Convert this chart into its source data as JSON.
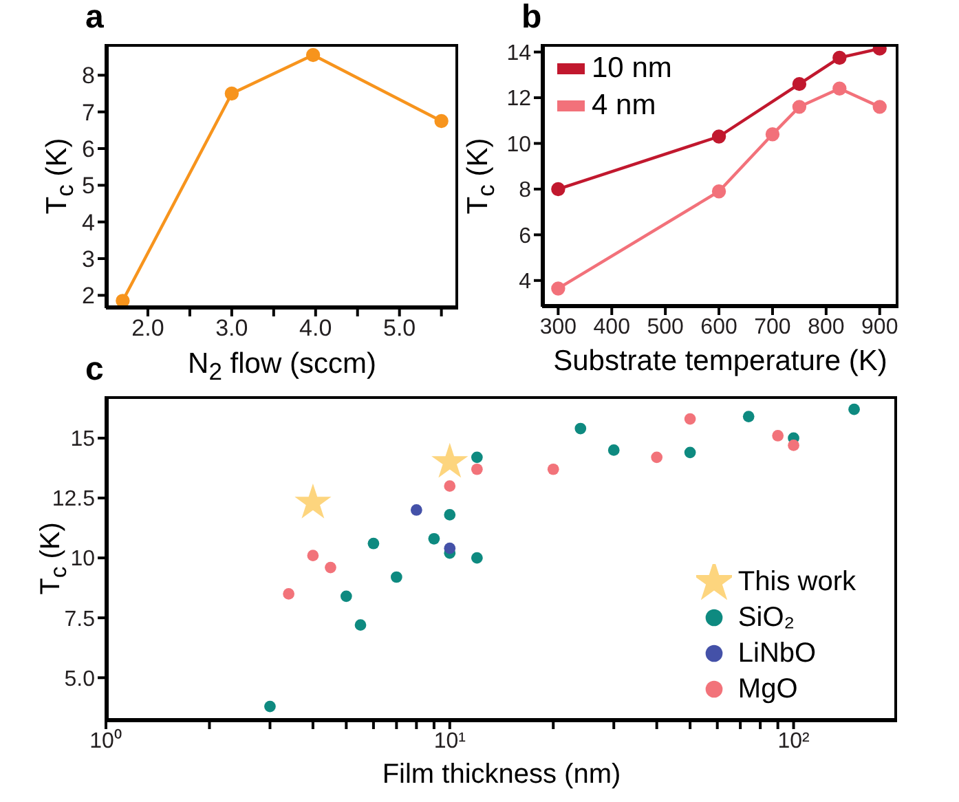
{
  "chart_data": [
    {
      "type": "line",
      "title": "a",
      "xlabel": "N$_{2}$ flow (sccm)",
      "ylabel": "T$_{c}$ (K)",
      "x": [
        1.7,
        3.0,
        3.97,
        5.5
      ],
      "series": [
        {
          "color": "#f7941d",
          "values": [
            1.85,
            7.5,
            8.55,
            6.75
          ]
        }
      ],
      "xlim": [
        1.5,
        5.7
      ],
      "xticks": [
        {
          "value": 2,
          "label": "2.0"
        },
        {
          "value": 2.5,
          "label": null
        },
        {
          "value": 3,
          "label": "3.0"
        },
        {
          "value": 3.5,
          "label": null
        },
        {
          "value": 4,
          "label": "4.0"
        },
        {
          "value": 4.5,
          "label": null
        },
        {
          "value": 5,
          "label": "5.0"
        },
        {
          "value": 5.5,
          "label": null
        }
      ],
      "ylim": [
        1.65,
        8.85
      ],
      "yticks": [
        2,
        3,
        4,
        5,
        6,
        7,
        8
      ],
      "marker": "circle",
      "line_style": "solid",
      "grid": false,
      "legend": false
    },
    {
      "type": "line",
      "title": "b",
      "xlabel": "Substrate temperature (K)",
      "ylabel": "T$_{c}$ (K)",
      "series": [
        {
          "name": "10 nm",
          "color": "#c1182e",
          "x": [
            300,
            600,
            750,
            825,
            900
          ],
          "values": [
            8.0,
            10.3,
            12.6,
            13.75,
            14.15
          ]
        },
        {
          "name": "4 nm",
          "color": "#f2717a",
          "x": [
            300,
            600,
            700,
            750,
            825,
            900
          ],
          "values": [
            3.65,
            7.9,
            10.4,
            11.6,
            12.4,
            11.6
          ]
        }
      ],
      "xlim": [
        270,
        935
      ],
      "xticks": [
        300,
        400,
        500,
        600,
        700,
        800,
        900
      ],
      "ylim": [
        2.85,
        14.35
      ],
      "yticks": [
        4,
        6,
        8,
        10,
        12,
        14
      ],
      "marker": "circle",
      "line_style": "solid",
      "grid": false,
      "legend": "top left"
    },
    {
      "type": "scatter",
      "title": "c",
      "xlabel": "Film thickness (nm)",
      "ylabel": "T$_{c}$ (K)",
      "series": [
        {
          "name": "This work",
          "color": "#fdd57e",
          "marker": "star",
          "x": [
            4,
            10
          ],
          "values": [
            12.3,
            14.0
          ]
        },
        {
          "name": "SiO₂",
          "color": "#0e8a80",
          "x": [
            3,
            5,
            5.5,
            6,
            7,
            9,
            10,
            10,
            12,
            12,
            24,
            30,
            50,
            74,
            100,
            150
          ],
          "values": [
            3.8,
            8.4,
            7.2,
            10.6,
            9.2,
            10.8,
            11.8,
            10.2,
            14.2,
            10.0,
            15.4,
            14.5,
            14.4,
            15.9,
            15.0,
            16.2
          ]
        },
        {
          "name": "LiNbO",
          "color": "#4451a8",
          "x": [
            8,
            10
          ],
          "values": [
            12.0,
            10.4
          ]
        },
        {
          "name": "MgO",
          "color": "#f2737a",
          "x": [
            3.4,
            4,
            4.5,
            10,
            12,
            20,
            40,
            50,
            90,
            100
          ],
          "values": [
            8.5,
            10.1,
            9.6,
            13.0,
            13.7,
            13.7,
            14.2,
            15.8,
            15.1,
            14.7
          ]
        }
      ],
      "log": "x",
      "xlim": [
        1,
        200
      ],
      "xticks": [
        {
          "value": 1,
          "label": "10⁰"
        },
        {
          "value": 2,
          "label": null
        },
        {
          "value": 3,
          "label": null
        },
        {
          "value": 4,
          "label": null
        },
        {
          "value": 5,
          "label": null
        },
        {
          "value": 6,
          "label": null
        },
        {
          "value": 7,
          "label": null
        },
        {
          "value": 8,
          "label": null
        },
        {
          "value": 9,
          "label": null
        },
        {
          "value": 10,
          "label": "10¹"
        },
        {
          "value": 20,
          "label": null
        },
        {
          "value": 30,
          "label": null
        },
        {
          "value": 40,
          "label": null
        },
        {
          "value": 50,
          "label": null
        },
        {
          "value": 60,
          "label": null
        },
        {
          "value": 70,
          "label": null
        },
        {
          "value": 80,
          "label": null
        },
        {
          "value": 90,
          "label": null
        },
        {
          "value": 100,
          "label": "10²"
        }
      ],
      "ylim": [
        3.2,
        16.75
      ],
      "yticks": [
        {
          "value": 5,
          "label": "5.0"
        },
        7.5,
        10,
        12.5,
        15
      ],
      "marker": "circle",
      "grid": false,
      "legend": "bottom right"
    }
  ]
}
